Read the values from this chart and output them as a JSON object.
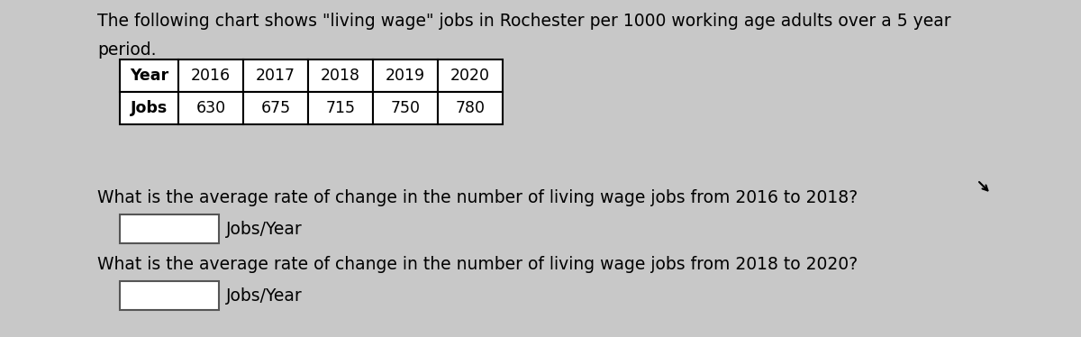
{
  "title_line1": "The following chart shows \"living wage\" jobs in Rochester per 1000 working age adults over a 5 year",
  "title_line2": "period.",
  "years": [
    "Year",
    "2016",
    "2017",
    "2018",
    "2019",
    "2020"
  ],
  "jobs": [
    "Jobs",
    "630",
    "675",
    "715",
    "750",
    "780"
  ],
  "question1": "What is the average rate of change in the number of living wage jobs from 2016 to 2018?",
  "question2": "What is the average rate of change in the number of living wage jobs from 2018 to 2020?",
  "unit": "Jobs/Year",
  "bg_color": "#c8c8c8",
  "text_color": "#000000",
  "font_size_title": 13.5,
  "font_size_table": 12.5,
  "font_size_question": 13.5
}
